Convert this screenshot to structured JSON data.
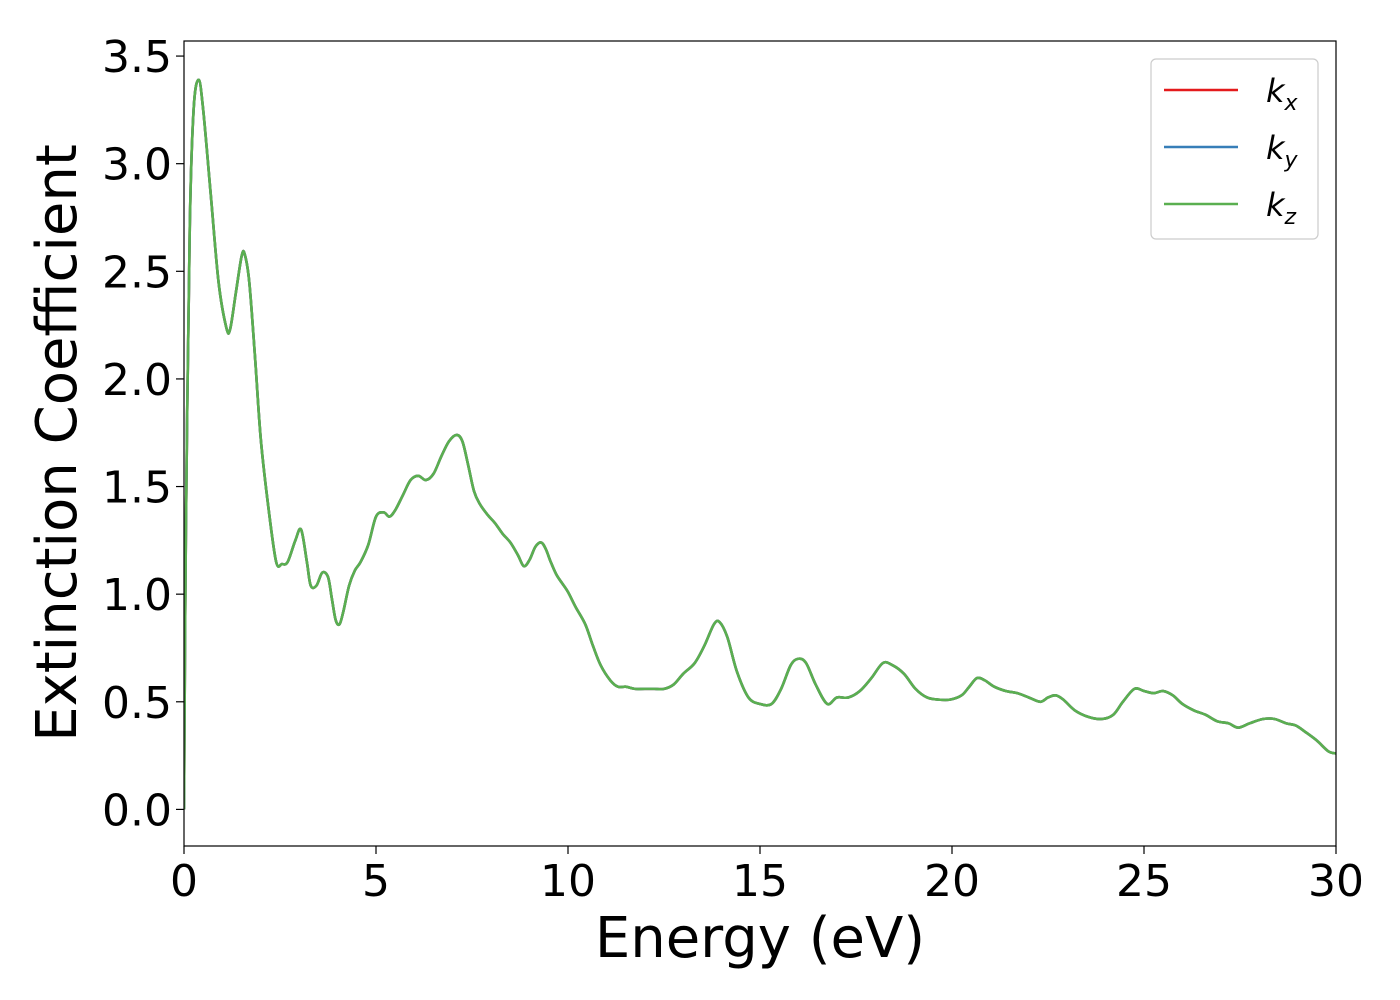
{
  "chart_data": {
    "type": "line",
    "title": "",
    "xlabel": "Energy (eV)",
    "ylabel": "Extinction Coefficient",
    "xlim": [
      0,
      30
    ],
    "ylim": [
      -0.17,
      3.57
    ],
    "x_ticks": [
      0,
      5,
      10,
      15,
      20,
      25,
      30
    ],
    "y_ticks": [
      0.0,
      0.5,
      1.0,
      1.5,
      2.0,
      2.5,
      3.0,
      3.5
    ],
    "x_tick_labels": [
      "0",
      "5",
      "10",
      "15",
      "20",
      "25",
      "30"
    ],
    "y_tick_labels": [
      "0.0",
      "0.5",
      "1.0",
      "1.5",
      "2.0",
      "2.5",
      "3.0",
      "3.5"
    ],
    "grid": false,
    "legend_position": "top-right",
    "series": [
      {
        "name": "k_x",
        "base": "k",
        "sub": "x",
        "color": "#e41a1c"
      },
      {
        "name": "k_y",
        "base": "k",
        "sub": "y",
        "color": "#377eb8"
      },
      {
        "name": "k_z",
        "base": "k",
        "sub": "z",
        "color": "#5aaf50"
      }
    ],
    "x": [
      0,
      0.05,
      0.15,
      0.25,
      0.38,
      0.5,
      0.7,
      0.9,
      1.1,
      1.2,
      1.35,
      1.5,
      1.58,
      1.7,
      1.85,
      2.0,
      2.2,
      2.4,
      2.55,
      2.7,
      2.9,
      3.05,
      3.2,
      3.3,
      3.45,
      3.6,
      3.75,
      3.85,
      3.95,
      4.05,
      4.15,
      4.3,
      4.45,
      4.6,
      4.8,
      5.0,
      5.2,
      5.35,
      5.5,
      5.7,
      5.9,
      6.1,
      6.3,
      6.5,
      6.7,
      6.9,
      7.1,
      7.25,
      7.4,
      7.55,
      7.7,
      7.9,
      8.1,
      8.3,
      8.5,
      8.7,
      8.85,
      9.0,
      9.15,
      9.3,
      9.42,
      9.55,
      9.7,
      9.85,
      10.0,
      10.2,
      10.45,
      10.65,
      10.85,
      11.1,
      11.3,
      11.5,
      11.75,
      12.0,
      12.25,
      12.5,
      12.75,
      13.0,
      13.3,
      13.55,
      13.8,
      13.95,
      14.15,
      14.4,
      14.7,
      15.0,
      15.3,
      15.55,
      15.8,
      16.0,
      16.2,
      16.45,
      16.75,
      17.0,
      17.3,
      17.6,
      17.9,
      18.2,
      18.45,
      18.75,
      19.05,
      19.35,
      19.65,
      19.95,
      20.25,
      20.45,
      20.65,
      20.85,
      21.1,
      21.4,
      21.7,
      22.0,
      22.3,
      22.5,
      22.7,
      22.9,
      23.2,
      23.55,
      23.9,
      24.2,
      24.45,
      24.75,
      25.0,
      25.25,
      25.5,
      25.75,
      26.0,
      26.3,
      26.6,
      26.9,
      27.2,
      27.45,
      27.75,
      28.1,
      28.4,
      28.7,
      28.95,
      29.2,
      29.5,
      29.8,
      30.0
    ],
    "y": [
      0.0,
      1.3,
      2.7,
      3.25,
      3.39,
      3.25,
      2.85,
      2.45,
      2.24,
      2.23,
      2.4,
      2.57,
      2.58,
      2.45,
      2.1,
      1.72,
      1.4,
      1.15,
      1.14,
      1.15,
      1.25,
      1.3,
      1.15,
      1.04,
      1.04,
      1.1,
      1.08,
      0.98,
      0.88,
      0.86,
      0.92,
      1.04,
      1.11,
      1.15,
      1.23,
      1.36,
      1.38,
      1.36,
      1.39,
      1.46,
      1.53,
      1.55,
      1.53,
      1.56,
      1.64,
      1.71,
      1.74,
      1.71,
      1.6,
      1.48,
      1.42,
      1.37,
      1.33,
      1.28,
      1.24,
      1.18,
      1.13,
      1.16,
      1.22,
      1.24,
      1.21,
      1.15,
      1.09,
      1.05,
      1.01,
      0.94,
      0.86,
      0.76,
      0.67,
      0.6,
      0.57,
      0.57,
      0.56,
      0.56,
      0.56,
      0.56,
      0.58,
      0.63,
      0.68,
      0.76,
      0.86,
      0.87,
      0.8,
      0.64,
      0.52,
      0.49,
      0.49,
      0.56,
      0.67,
      0.7,
      0.68,
      0.58,
      0.49,
      0.52,
      0.52,
      0.55,
      0.61,
      0.68,
      0.67,
      0.63,
      0.56,
      0.52,
      0.51,
      0.51,
      0.53,
      0.57,
      0.61,
      0.6,
      0.57,
      0.55,
      0.54,
      0.52,
      0.5,
      0.52,
      0.53,
      0.51,
      0.46,
      0.43,
      0.42,
      0.44,
      0.5,
      0.56,
      0.55,
      0.54,
      0.55,
      0.53,
      0.49,
      0.46,
      0.44,
      0.41,
      0.4,
      0.38,
      0.4,
      0.42,
      0.42,
      0.4,
      0.39,
      0.36,
      0.32,
      0.27,
      0.26
    ]
  }
}
